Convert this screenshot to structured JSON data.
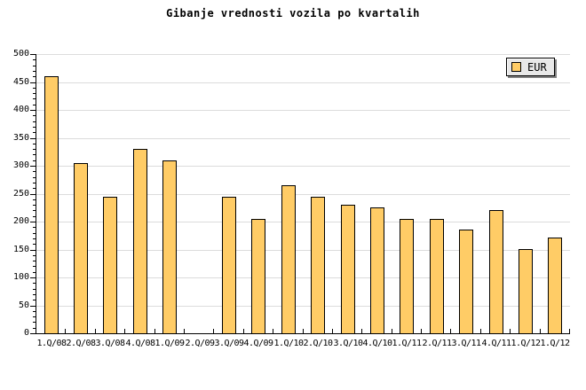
{
  "title": "Gibanje vrednosti vozila po kvartalih",
  "legend": {
    "label": "EUR",
    "swatch_color": "#ffcc66"
  },
  "colors": {
    "bar_fill": "#ffcc66",
    "bar_border": "#000000",
    "grid": "#dcdcdc",
    "axis": "#000000",
    "legend_bg": "#e8e8e8",
    "legend_shadow": "#808080",
    "background": "#ffffff"
  },
  "chart_data": {
    "type": "bar",
    "title": "Gibanje vrednosti vozila po kvartalih",
    "series_name": "EUR",
    "categories": [
      "1.Q/08",
      "2.Q/08",
      "3.Q/08",
      "4.Q/08",
      "1.Q/09",
      "2.Q/09",
      "3.Q/09",
      "4.Q/09",
      "1.Q/10",
      "2.Q/10",
      "3.Q/10",
      "4.Q/10",
      "1.Q/11",
      "2.Q/11",
      "3.Q/11",
      "4.Q/11",
      "1.Q/12",
      "1.Q/12"
    ],
    "values": [
      460,
      305,
      245,
      330,
      310,
      0,
      245,
      205,
      265,
      245,
      230,
      225,
      205,
      205,
      185,
      220,
      150,
      172
    ],
    "xlabel": "",
    "ylabel": "",
    "ylim": [
      0,
      500
    ],
    "y_major_step": 50,
    "y_minor_step": 10,
    "yticks": [
      "0",
      "50",
      "100",
      "150",
      "200",
      "250",
      "300",
      "350",
      "400",
      "450",
      "500"
    ],
    "grid": "horizontal-major",
    "legend_position": "top-right"
  }
}
